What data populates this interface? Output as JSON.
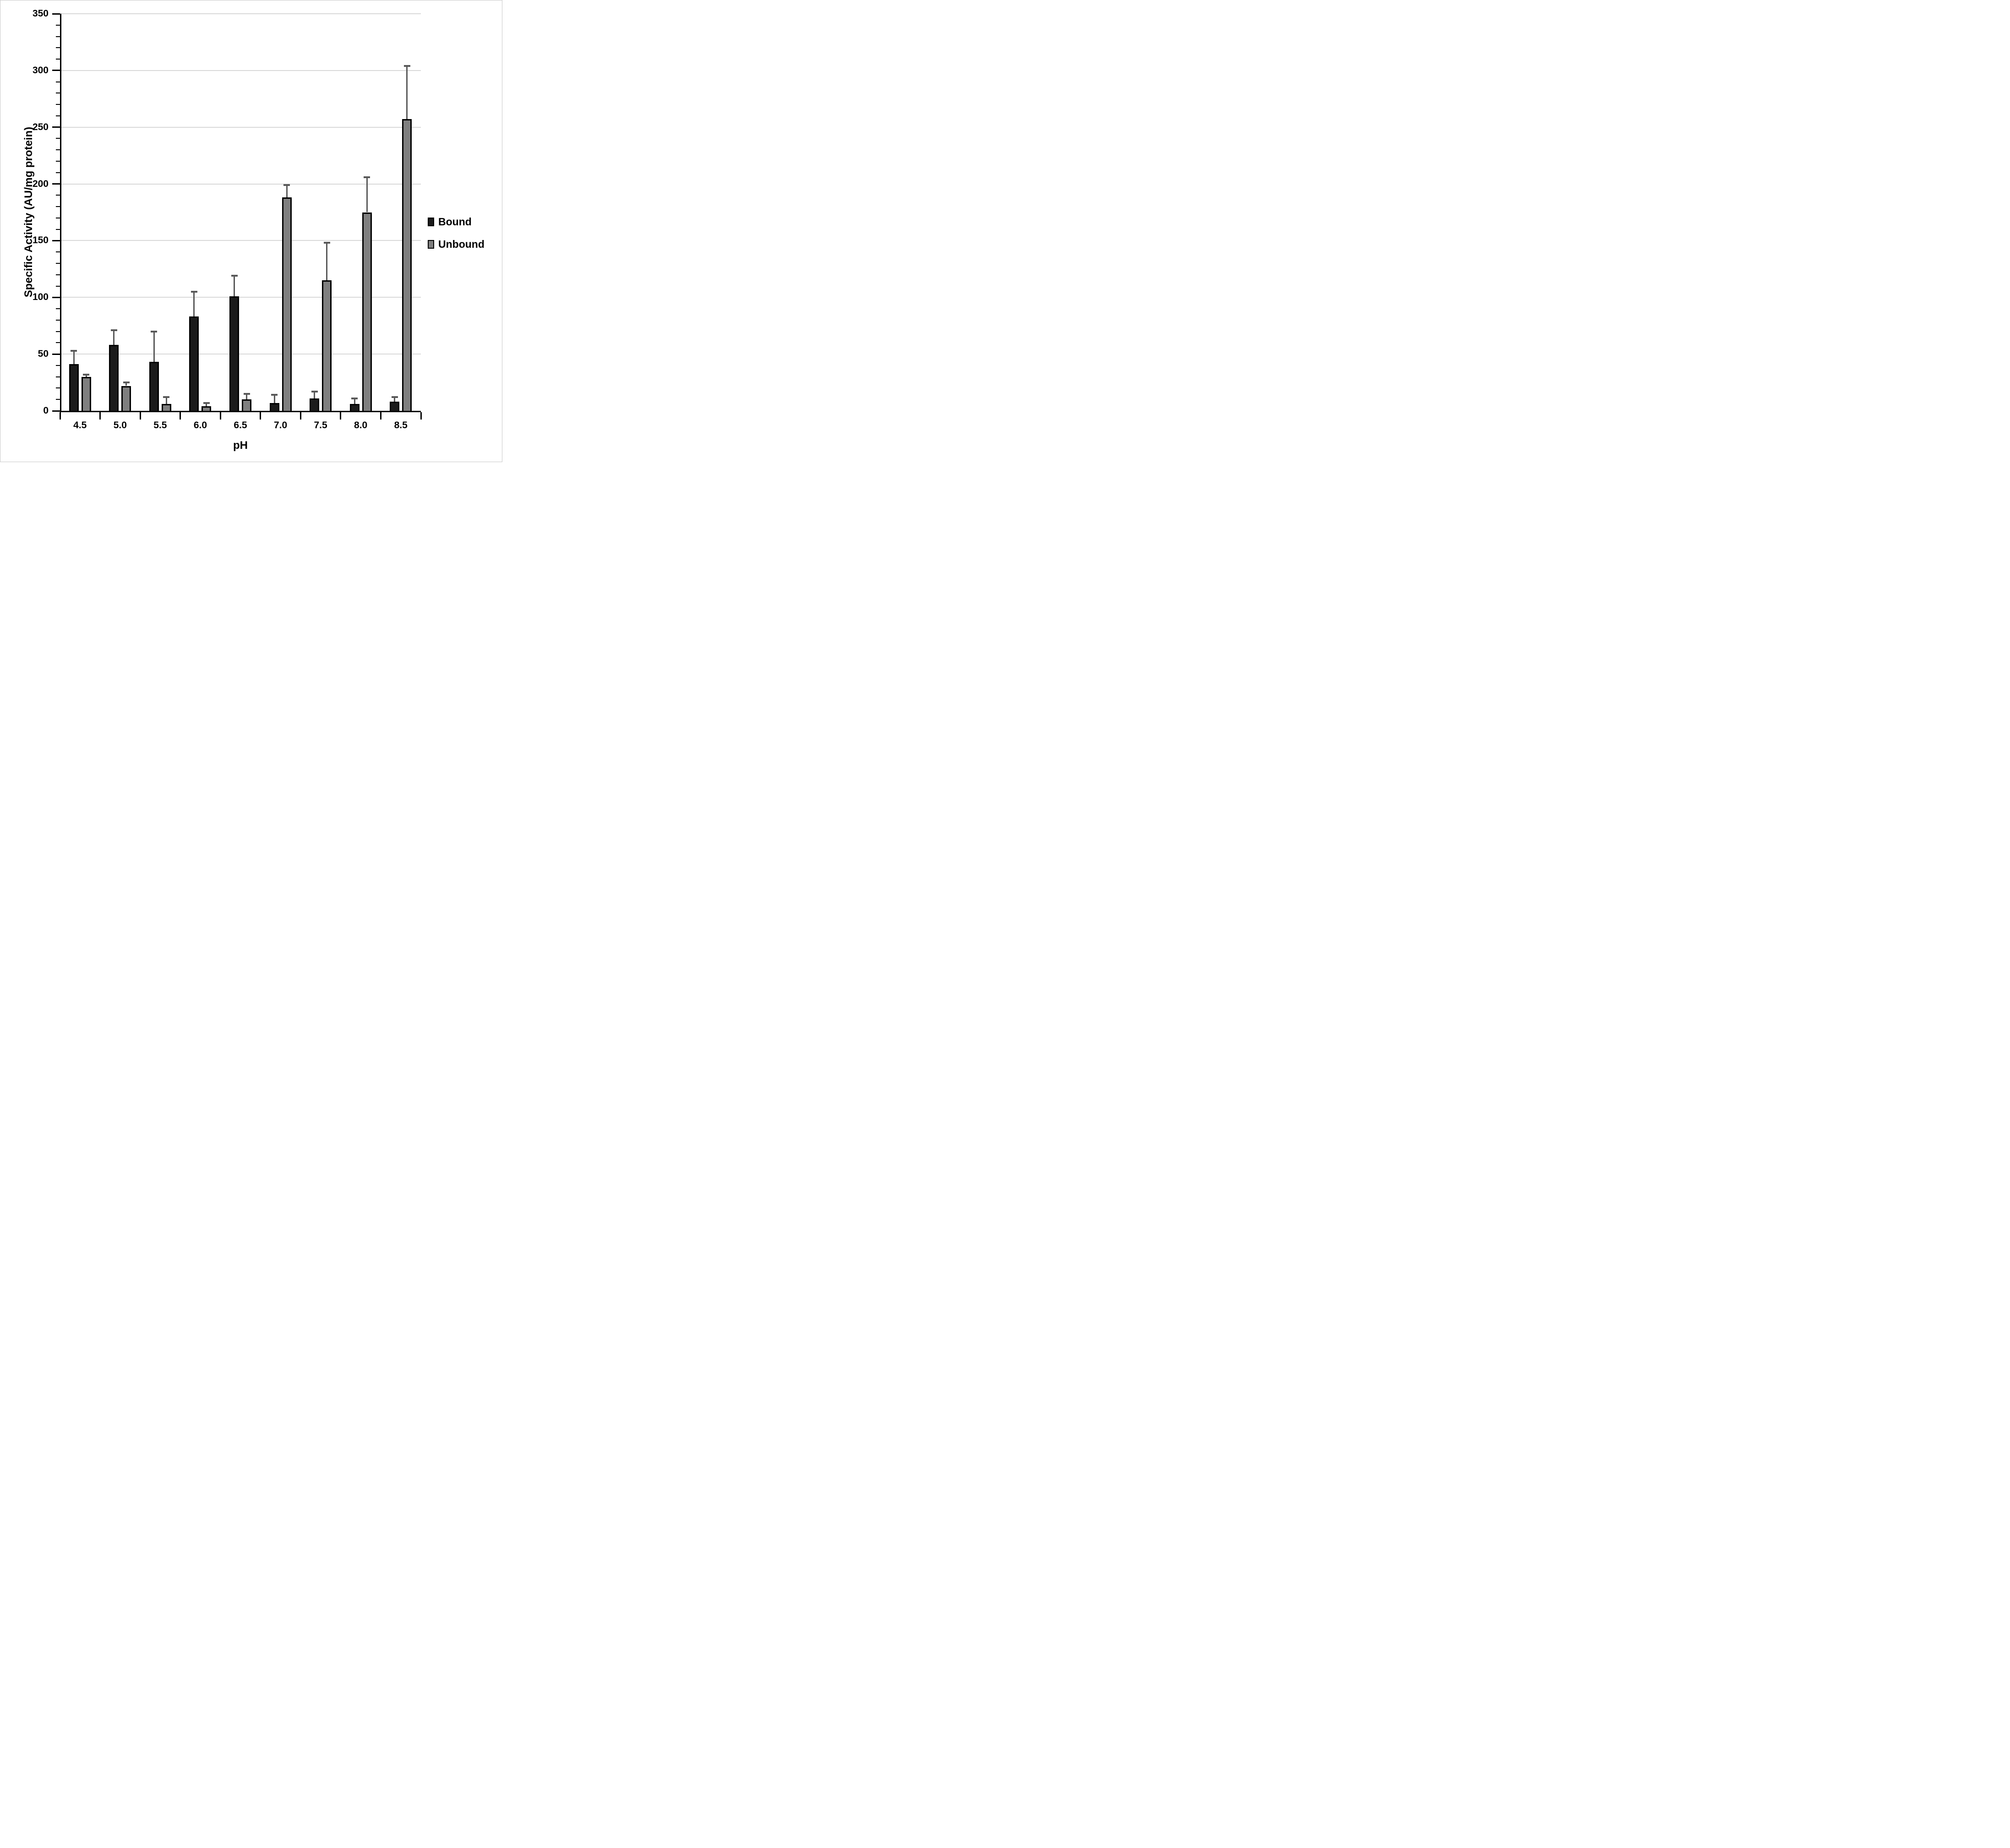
{
  "chart_data": {
    "type": "bar",
    "title": "",
    "xlabel": "pH",
    "ylabel": "Specific Activity (AU/mg protein)",
    "categories": [
      "4.5",
      "5.0",
      "5.5",
      "6.0",
      "6.5",
      "7.0",
      "7.5",
      "8.0",
      "8.5"
    ],
    "series": [
      {
        "name": "Bound",
        "color": "#1b1b1b",
        "values": [
          41,
          58,
          43,
          83,
          101,
          7,
          11,
          6,
          8
        ],
        "errors_plus": [
          12,
          13,
          27,
          22,
          18,
          7,
          6,
          5,
          4
        ]
      },
      {
        "name": "Unbound",
        "color": "#7f7f7f",
        "values": [
          30,
          22,
          6,
          4,
          10,
          188,
          115,
          175,
          257
        ],
        "errors_plus": [
          2,
          3,
          6,
          3,
          5,
          11,
          33,
          31,
          47
        ]
      }
    ],
    "ylim": [
      0,
      350
    ],
    "ytick_step": 50,
    "yminor_step": 10,
    "grid": true,
    "legend_position": "right",
    "colors": {
      "gridline": "#d9d9d9",
      "axis": "#000000",
      "error_bar": "#595959",
      "figure_border": "#c9c9c9",
      "background": "#ffffff",
      "text": "#000000"
    }
  }
}
